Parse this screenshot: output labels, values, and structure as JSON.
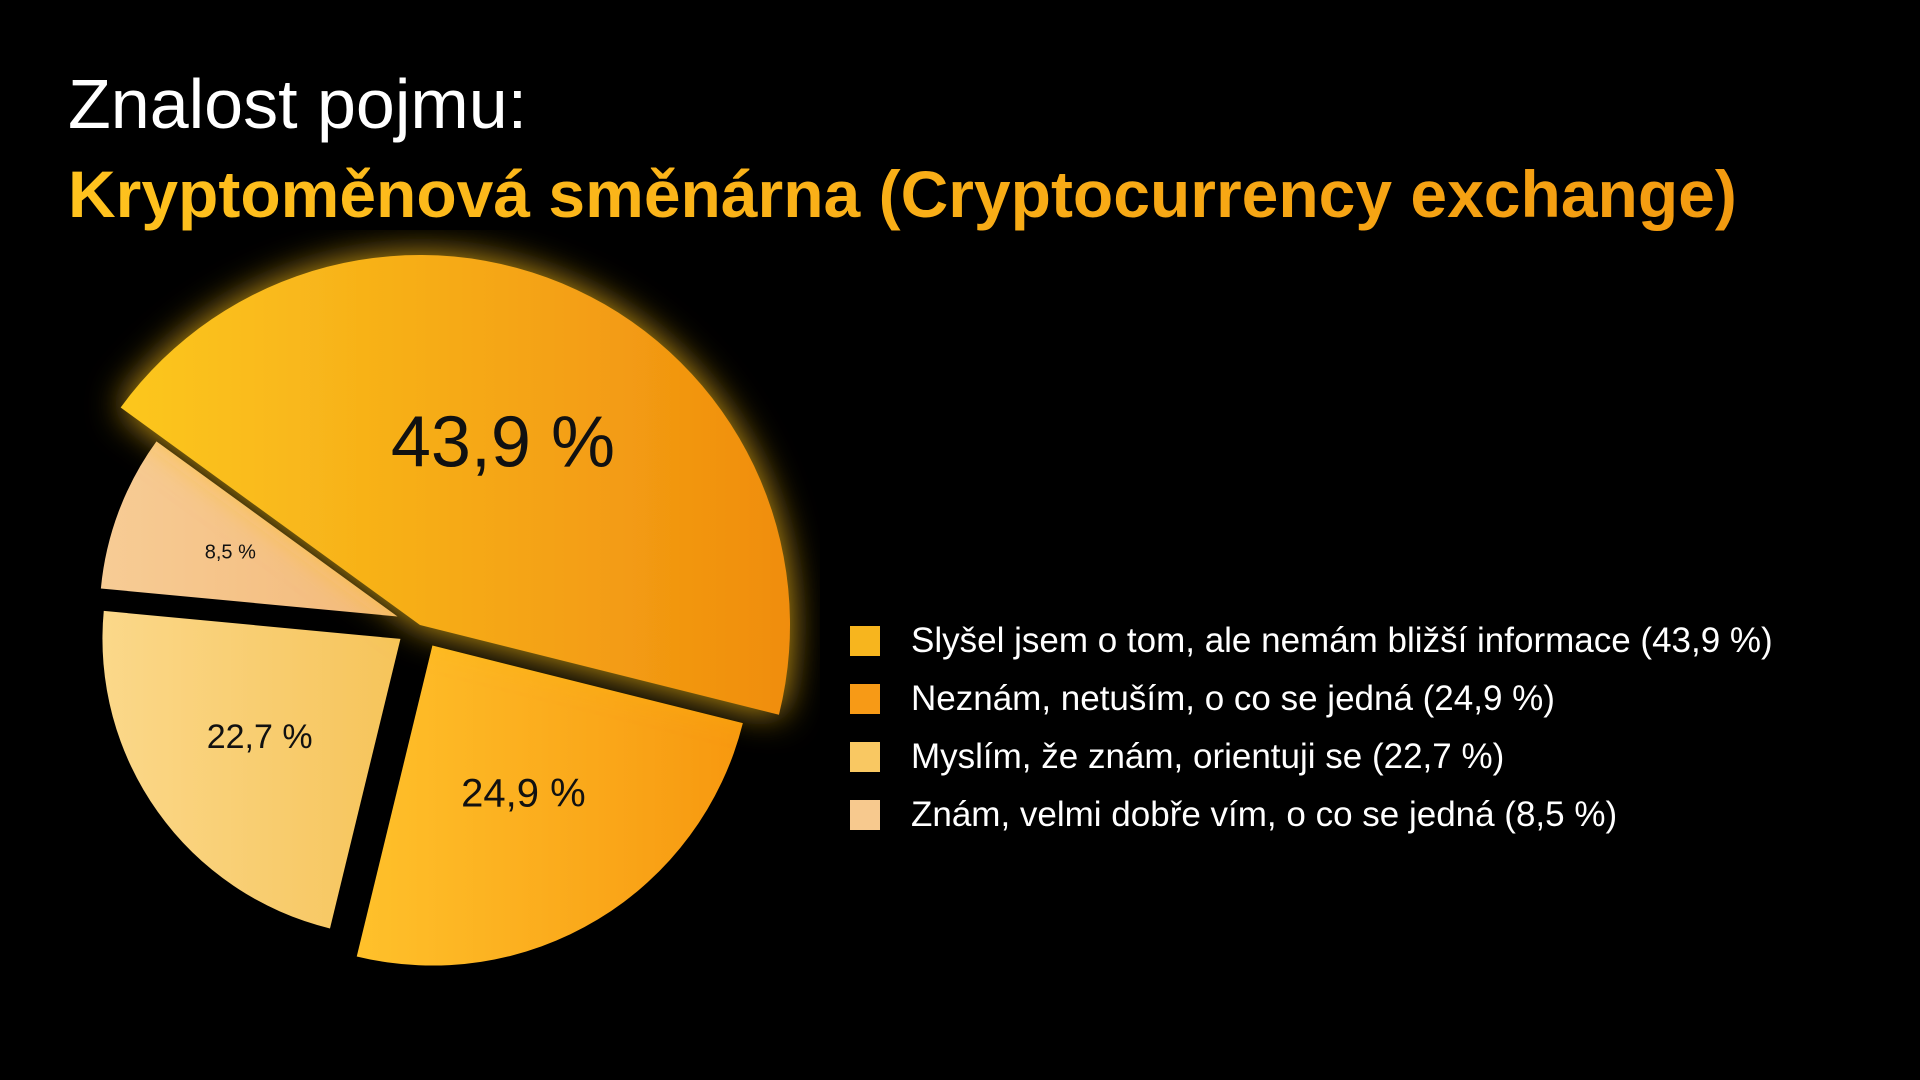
{
  "title": "Znalost pojmu:",
  "subtitle": "Kryptoměnová směnárna (Cryptocurrency exchange)",
  "chart_data": {
    "type": "pie",
    "title": "Znalost pojmu:",
    "subtitle": "Kryptoměnová směnárna (Cryptocurrency exchange)",
    "slices": [
      {
        "label": "Slyšel jsem o tom, ale nemám bližší informace (43,9 %)",
        "value": 43.9,
        "data_label": "43,9 %",
        "color": "#f7b51e",
        "exploded": false
      },
      {
        "label": "Neznám, netuším, o co se jedná (24,9 %)",
        "value": 24.9,
        "data_label": "24,9 %",
        "color": "#f79a16",
        "exploded": true
      },
      {
        "label": "Myslím, že znám, orientuji se (22,7 %)",
        "value": 22.7,
        "data_label": "22,7 %",
        "color": "#f9c862",
        "exploded": true
      },
      {
        "label": "Znám, velmi dobře vím, o co se jedná (8,5 %)",
        "value": 8.5,
        "data_label": "8,5 %",
        "color": "#f7c98e",
        "exploded": true
      }
    ],
    "legend_position": "right"
  }
}
